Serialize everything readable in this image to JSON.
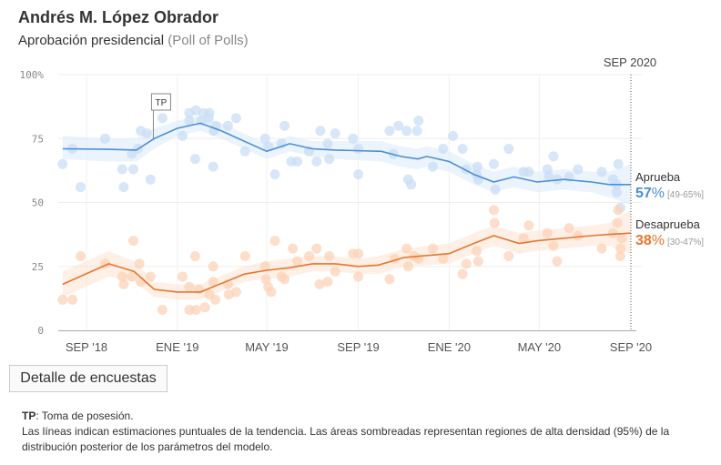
{
  "header": {
    "title": "Andrés M. López Obrador",
    "subtitle": "Aprobación presidencial",
    "subtitle_note": "(Poll of Polls)"
  },
  "button": {
    "label": "Detalle de encuestas"
  },
  "notes": {
    "tp_key": "TP",
    "tp_text": ": Toma de posesión.",
    "line2": "Las líneas indican estimaciones puntuales de la tendencia. Las áreas sombreadas representan regiones de alta densidad (95%) de la distribución posterior de los parámetros del modelo."
  },
  "chart_data": {
    "type": "line",
    "current_date_label": "SEP 2020",
    "xlim": [
      "2018-07-31",
      "2020-09-01"
    ],
    "ylim": [
      0,
      100
    ],
    "y_ticks": [
      {
        "v": 100,
        "label": "100%"
      },
      {
        "v": 75,
        "label": "75"
      },
      {
        "v": 50,
        "label": "50"
      },
      {
        "v": 25,
        "label": "25"
      },
      {
        "v": 0,
        "label": "0"
      }
    ],
    "x_ticks": [
      {
        "d": "2018-09-01",
        "label": "SEP '18"
      },
      {
        "d": "2019-01-01",
        "label": "ENE '19"
      },
      {
        "d": "2019-05-01",
        "label": "MAY '19"
      },
      {
        "d": "2019-09-01",
        "label": "SEP '19"
      },
      {
        "d": "2020-01-01",
        "label": "ENE '20"
      },
      {
        "d": "2020-05-01",
        "label": "MAY '20"
      },
      {
        "d": "2020-09-01",
        "label": "SEP '20"
      }
    ],
    "grid": true,
    "annotation": {
      "label": "TP",
      "date": "2018-12-01",
      "value": 75
    },
    "series": [
      {
        "name": "Aprueba",
        "color": "#4a8fd6",
        "band_color": "#dbe9fa",
        "dot_color": "#c9def6",
        "final_value": "57",
        "final_unit": "%",
        "interval": "[49-65%]",
        "trend": [
          [
            "2018-07-31",
            71,
            67,
            76
          ],
          [
            "2018-10-01",
            70.8,
            66,
            75
          ],
          [
            "2018-11-07",
            70.5,
            66,
            75
          ],
          [
            "2018-12-01",
            75,
            71,
            79
          ],
          [
            "2019-01-01",
            79,
            76,
            82
          ],
          [
            "2019-02-01",
            81,
            78,
            84
          ],
          [
            "2019-03-01",
            78,
            75,
            81
          ],
          [
            "2019-05-01",
            70,
            67,
            73
          ],
          [
            "2019-06-01",
            73,
            70,
            76
          ],
          [
            "2019-07-01",
            71,
            68,
            74
          ],
          [
            "2019-08-01",
            70.5,
            67,
            74
          ],
          [
            "2019-10-02",
            70,
            66,
            74
          ],
          [
            "2019-10-28",
            68,
            64,
            72
          ],
          [
            "2019-11-20",
            67,
            63,
            71
          ],
          [
            "2019-12-02",
            68,
            64,
            72
          ],
          [
            "2020-01-01",
            66,
            62,
            70
          ],
          [
            "2020-02-03",
            61,
            57,
            65
          ],
          [
            "2020-03-01",
            58,
            54,
            62
          ],
          [
            "2020-03-28",
            60,
            56,
            64
          ],
          [
            "2020-04-28",
            58,
            54,
            62
          ],
          [
            "2020-06-03",
            59,
            55,
            63
          ],
          [
            "2020-07-10",
            58,
            54,
            62
          ],
          [
            "2020-08-03",
            57,
            52,
            62
          ],
          [
            "2020-09-01",
            57,
            49,
            65
          ]
        ],
        "polls": [
          [
            "2018-07-31",
            65
          ],
          [
            "2018-08-13",
            71
          ],
          [
            "2018-08-24",
            56
          ],
          [
            "2018-09-26",
            75
          ],
          [
            "2018-10-19",
            63
          ],
          [
            "2018-10-21",
            56
          ],
          [
            "2018-11-01",
            69
          ],
          [
            "2018-11-03",
            63
          ],
          [
            "2018-11-09",
            71
          ],
          [
            "2018-11-13",
            78
          ],
          [
            "2018-11-21",
            77
          ],
          [
            "2018-11-26",
            59
          ],
          [
            "2018-12-12",
            83
          ],
          [
            "2019-01-08",
            76
          ],
          [
            "2019-01-17",
            85
          ],
          [
            "2019-01-17",
            82
          ],
          [
            "2019-01-25",
            67
          ],
          [
            "2019-01-26",
            86
          ],
          [
            "2019-02-02",
            82
          ],
          [
            "2019-02-05",
            85
          ],
          [
            "2019-02-13",
            85
          ],
          [
            "2019-02-12",
            83
          ],
          [
            "2019-02-18",
            64
          ],
          [
            "2019-02-19",
            78
          ],
          [
            "2019-02-22",
            80
          ],
          [
            "2019-03-10",
            80
          ],
          [
            "2019-03-21",
            83
          ],
          [
            "2019-04-02",
            70
          ],
          [
            "2019-04-29",
            75
          ],
          [
            "2019-05-03",
            72
          ],
          [
            "2019-05-12",
            61
          ],
          [
            "2019-05-21",
            73
          ],
          [
            "2019-05-25",
            80
          ],
          [
            "2019-06-03",
            66
          ],
          [
            "2019-06-11",
            66
          ],
          [
            "2019-06-27",
            70
          ],
          [
            "2019-07-07",
            66
          ],
          [
            "2019-07-12",
            78
          ],
          [
            "2019-07-22",
            73
          ],
          [
            "2019-07-24",
            67
          ],
          [
            "2019-08-01",
            77
          ],
          [
            "2019-08-25",
            75
          ],
          [
            "2019-09-01",
            61
          ],
          [
            "2019-09-01",
            71
          ],
          [
            "2019-10-13",
            78
          ],
          [
            "2019-10-18",
            69
          ],
          [
            "2019-10-25",
            80
          ],
          [
            "2019-11-05",
            78
          ],
          [
            "2019-11-07",
            59
          ],
          [
            "2019-11-11",
            57
          ],
          [
            "2019-11-19",
            78
          ],
          [
            "2019-11-21",
            82
          ],
          [
            "2019-12-10",
            64
          ],
          [
            "2019-12-24",
            71
          ],
          [
            "2020-01-06",
            76
          ],
          [
            "2020-01-19",
            71
          ],
          [
            "2020-01-24",
            63
          ],
          [
            "2020-02-07",
            61
          ],
          [
            "2020-02-08",
            64
          ],
          [
            "2020-02-09",
            59
          ],
          [
            "2020-03-01",
            65
          ],
          [
            "2020-03-03",
            55
          ],
          [
            "2020-03-21",
            71
          ],
          [
            "2020-04-10",
            62
          ],
          [
            "2020-04-17",
            62
          ],
          [
            "2020-05-12",
            63
          ],
          [
            "2020-05-14",
            60
          ],
          [
            "2020-05-20",
            68
          ],
          [
            "2020-05-25",
            59
          ],
          [
            "2020-06-10",
            60
          ],
          [
            "2020-06-22",
            63
          ],
          [
            "2020-07-24",
            62
          ],
          [
            "2020-08-08",
            59
          ],
          [
            "2020-08-13",
            57
          ],
          [
            "2020-08-13",
            54
          ],
          [
            "2020-08-15",
            65
          ],
          [
            "2020-08-18",
            48
          ]
        ]
      },
      {
        "name": "Desaprueba",
        "color": "#e8762c",
        "band_color": "#fde3d1",
        "dot_color": "#fbd3b8",
        "final_value": "38",
        "final_unit": "%",
        "interval": "[30-47%]",
        "trend": [
          [
            "2018-07-31",
            18,
            13,
            23
          ],
          [
            "2018-10-01",
            26,
            21,
            31
          ],
          [
            "2018-11-04",
            23,
            19,
            27
          ],
          [
            "2018-12-01",
            16,
            13,
            19
          ],
          [
            "2019-01-01",
            15,
            12,
            18
          ],
          [
            "2019-02-01",
            15,
            12,
            18
          ],
          [
            "2019-04-01",
            22,
            19,
            25
          ],
          [
            "2019-05-01",
            23.5,
            20,
            27
          ],
          [
            "2019-06-01",
            24.5,
            21,
            28
          ],
          [
            "2019-07-01",
            26,
            23,
            29
          ],
          [
            "2019-08-01",
            26,
            23,
            29
          ],
          [
            "2019-09-01",
            25,
            22,
            28
          ],
          [
            "2019-09-28",
            25.5,
            22,
            29
          ],
          [
            "2019-11-02",
            28.5,
            25,
            32
          ],
          [
            "2020-01-01",
            30,
            26,
            34
          ],
          [
            "2020-02-03",
            34,
            30,
            38
          ],
          [
            "2020-03-01",
            37,
            33,
            41
          ],
          [
            "2020-04-04",
            34,
            30,
            38
          ],
          [
            "2020-04-28",
            35,
            31,
            39
          ],
          [
            "2020-06-03",
            36,
            32,
            40
          ],
          [
            "2020-07-10",
            37,
            33,
            41
          ],
          [
            "2020-08-03",
            37.5,
            33,
            42
          ],
          [
            "2020-09-01",
            38,
            30,
            47
          ]
        ],
        "polls": [
          [
            "2018-07-31",
            12
          ],
          [
            "2018-08-13",
            12
          ],
          [
            "2018-08-24",
            29
          ],
          [
            "2018-09-26",
            26
          ],
          [
            "2018-10-19",
            21
          ],
          [
            "2018-10-21",
            18
          ],
          [
            "2018-11-01",
            21
          ],
          [
            "2018-11-03",
            35
          ],
          [
            "2018-11-11",
            26
          ],
          [
            "2018-11-13",
            19
          ],
          [
            "2018-11-26",
            21
          ],
          [
            "2018-12-12",
            8
          ],
          [
            "2019-01-08",
            21
          ],
          [
            "2019-01-17",
            17
          ],
          [
            "2019-01-17",
            8
          ],
          [
            "2019-01-26",
            8
          ],
          [
            "2019-01-25",
            29
          ],
          [
            "2019-01-30",
            16
          ],
          [
            "2019-02-07",
            9
          ],
          [
            "2019-02-13",
            14
          ],
          [
            "2019-02-18",
            25
          ],
          [
            "2019-02-18",
            19
          ],
          [
            "2019-02-21",
            12
          ],
          [
            "2019-03-10",
            18
          ],
          [
            "2019-03-11",
            14
          ],
          [
            "2019-03-21",
            15
          ],
          [
            "2019-04-02",
            29
          ],
          [
            "2019-04-29",
            25
          ],
          [
            "2019-04-30",
            20
          ],
          [
            "2019-05-03",
            17
          ],
          [
            "2019-05-07",
            15
          ],
          [
            "2019-05-12",
            35
          ],
          [
            "2019-05-21",
            21
          ],
          [
            "2019-05-25",
            20
          ],
          [
            "2019-06-05",
            32
          ],
          [
            "2019-06-11",
            27
          ],
          [
            "2019-06-27",
            29
          ],
          [
            "2019-07-07",
            32
          ],
          [
            "2019-07-11",
            18
          ],
          [
            "2019-07-22",
            19
          ],
          [
            "2019-07-24",
            29
          ],
          [
            "2019-08-01",
            23
          ],
          [
            "2019-08-25",
            30
          ],
          [
            "2019-09-01",
            21
          ],
          [
            "2019-09-01",
            30
          ],
          [
            "2019-10-13",
            20
          ],
          [
            "2019-10-20",
            28
          ],
          [
            "2019-11-05",
            32
          ],
          [
            "2019-11-07",
            25
          ],
          [
            "2019-11-15",
            29
          ],
          [
            "2019-11-21",
            28
          ],
          [
            "2019-12-10",
            32
          ],
          [
            "2019-12-24",
            28
          ],
          [
            "2020-01-19",
            22
          ],
          [
            "2020-01-24",
            26
          ],
          [
            "2020-02-07",
            31
          ],
          [
            "2020-02-09",
            27
          ],
          [
            "2020-03-01",
            47
          ],
          [
            "2020-03-02",
            42
          ],
          [
            "2020-03-21",
            29
          ],
          [
            "2020-04-10",
            36
          ],
          [
            "2020-04-17",
            41
          ],
          [
            "2020-05-12",
            38
          ],
          [
            "2020-05-20",
            33
          ],
          [
            "2020-05-25",
            27
          ],
          [
            "2020-06-10",
            40
          ],
          [
            "2020-06-22",
            37
          ],
          [
            "2020-07-24",
            32
          ],
          [
            "2020-08-08",
            38
          ],
          [
            "2020-08-14",
            42
          ],
          [
            "2020-08-15",
            47
          ],
          [
            "2020-08-18",
            29
          ],
          [
            "2020-08-18",
            32
          ],
          [
            "2020-08-20",
            36
          ]
        ]
      }
    ]
  }
}
